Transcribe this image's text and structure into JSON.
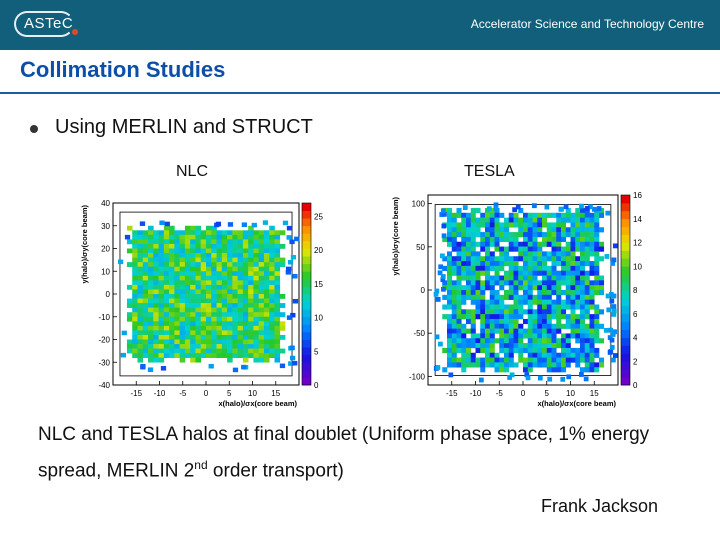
{
  "header": {
    "logo_text": "ASTeC",
    "centre_name": "Accelerator Science and Technology Centre"
  },
  "slide": {
    "title": "Collimation Studies",
    "bullet": "Using MERLIN and STRUCT",
    "caption_part1": "NLC and TESLA halos at final doublet (Uniform phase space, 1% energy spread, MERLIN 2",
    "caption_sup": "nd",
    "caption_part2": " order transport)",
    "author": "Frank Jackson"
  },
  "colors": {
    "header_bg": "#115f7a",
    "title": "#0d4fa8"
  },
  "chart_data": [
    {
      "type": "heatmap",
      "title": "NLC",
      "xlabel": "x(halo)/σx(core beam)",
      "ylabel": "y(halo)/σy(core beam)",
      "xlim": [
        -20,
        20
      ],
      "ylim": [
        -40,
        40
      ],
      "xticks": [
        "-15",
        "-10",
        "-5",
        "0",
        "5",
        "10",
        "15"
      ],
      "yticks": [
        "-40",
        "-30",
        "-20",
        "-10",
        "0",
        "10",
        "20",
        "30",
        "40"
      ],
      "colorbar_ticks": [
        "0",
        "5",
        "10",
        "15",
        "20",
        "25"
      ],
      "colorbar_range": [
        0,
        27
      ],
      "halo_extent_x": [
        -17,
        17
      ],
      "halo_extent_y": [
        -30,
        30
      ]
    },
    {
      "type": "heatmap",
      "title": "TESLA",
      "xlabel": "x(halo)/σx(core beam)",
      "ylabel": "y(halo)/σy(core beam)",
      "xlim": [
        -20,
        20
      ],
      "ylim": [
        -110,
        110
      ],
      "xticks": [
        "-15",
        "-10",
        "-5",
        "0",
        "5",
        "10",
        "15"
      ],
      "yticks": [
        "-100",
        "-50",
        "0",
        "50",
        "100"
      ],
      "colorbar_ticks": [
        "0",
        "2",
        "4",
        "6",
        "8",
        "10",
        "12",
        "14",
        "16"
      ],
      "colorbar_range": [
        0,
        16
      ],
      "halo_extent_x": [
        -17,
        17
      ],
      "halo_extent_y": [
        -95,
        95
      ]
    }
  ]
}
